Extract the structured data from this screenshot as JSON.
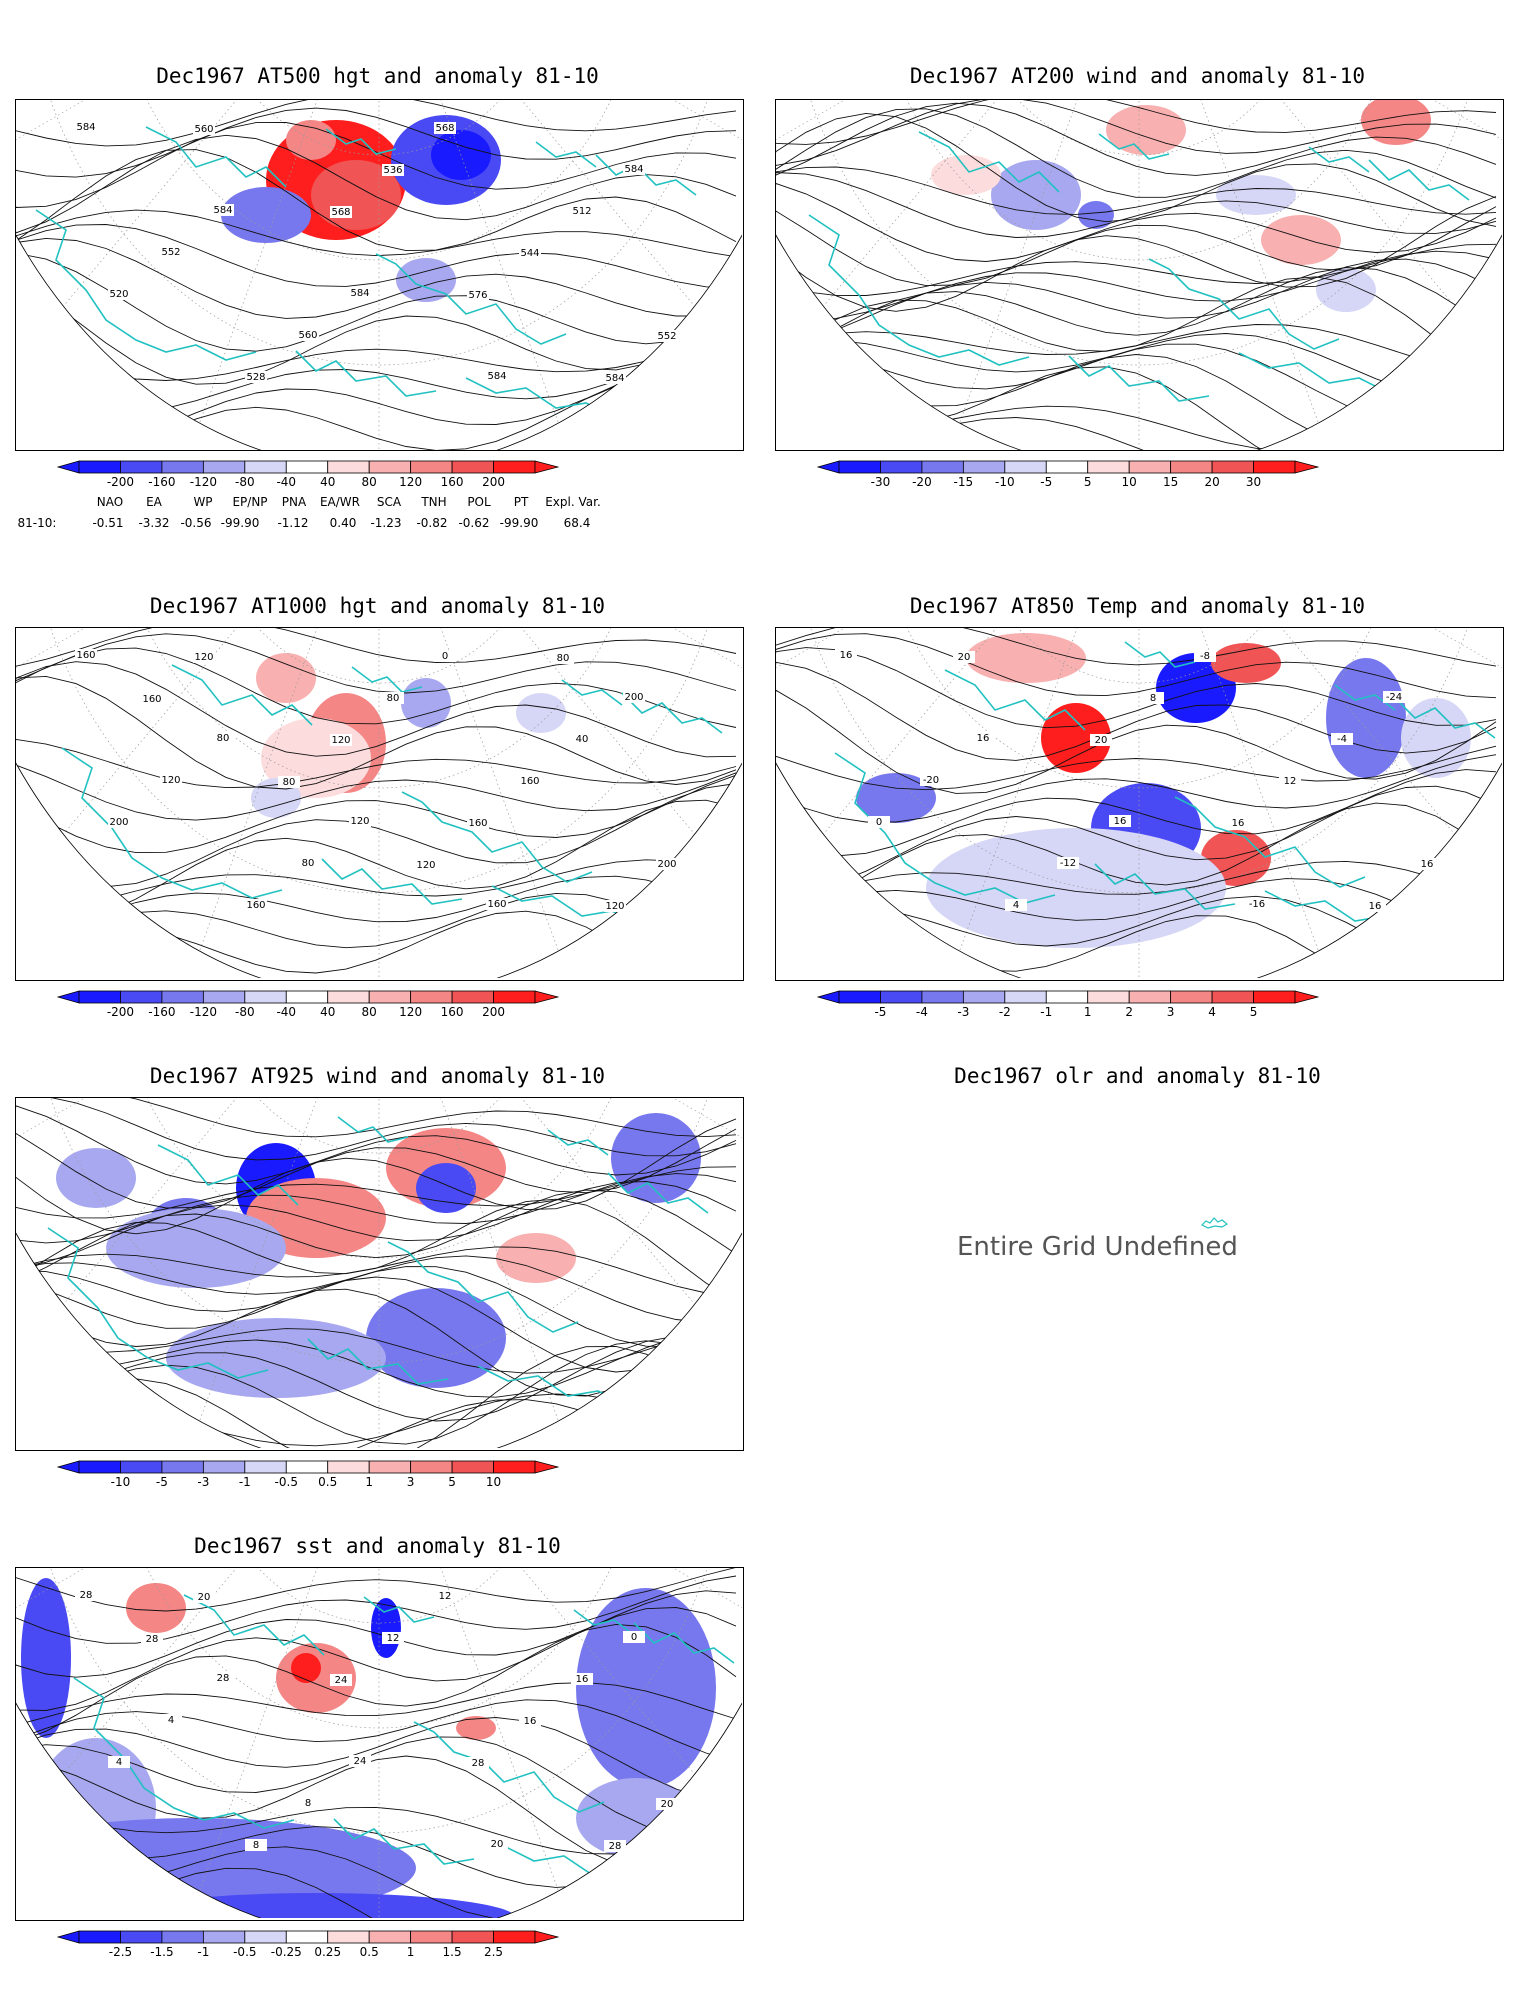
{
  "panels": [
    {
      "id": "p1",
      "title": "Dec1967 AT500 hgt and anomaly 81-10",
      "colorbar": [
        "-200",
        "-160",
        "-120",
        "-80",
        "-40",
        "40",
        "80",
        "120",
        "160",
        "200"
      ],
      "contour_labels": [
        "584",
        "584",
        "584",
        "584",
        "584",
        "552",
        "560",
        "568",
        "512",
        "520",
        "528",
        "536",
        "544",
        "552",
        "560",
        "568",
        "576",
        "584"
      ]
    },
    {
      "id": "p2",
      "title": "Dec1967 AT200 wind and anomaly 81-10",
      "colorbar": [
        "-30",
        "-20",
        "-15",
        "-10",
        "-5",
        "5",
        "10",
        "15",
        "20",
        "30"
      ],
      "contour_labels": []
    },
    {
      "id": "p3",
      "title": "Dec1967 AT1000 hgt and anomaly 81-10",
      "colorbar": [
        "-200",
        "-160",
        "-120",
        "-80",
        "-40",
        "40",
        "80",
        "120",
        "160",
        "200"
      ],
      "contour_labels": [
        "160",
        "80",
        "120",
        "160",
        "200",
        "120",
        "80",
        "0",
        "40",
        "200",
        "160",
        "80",
        "160",
        "200",
        "120",
        "120",
        "160",
        "120",
        "160",
        "80",
        "120",
        "80"
      ]
    },
    {
      "id": "p4",
      "title": "Dec1967 AT850 Temp and anomaly 81-10",
      "colorbar": [
        "-5",
        "-4",
        "-3",
        "-2",
        "-1",
        "1",
        "2",
        "3",
        "4",
        "5"
      ],
      "contour_labels": [
        "16",
        "16",
        "16",
        "-16",
        "-24",
        "-20",
        "-12",
        "-8",
        "-4",
        "0",
        "4",
        "8",
        "12",
        "16",
        "20",
        "20",
        "16",
        "16"
      ]
    },
    {
      "id": "p5",
      "title": "Dec1967 AT925 wind and anomaly 81-10",
      "colorbar": [
        "-10",
        "-5",
        "-3",
        "-1",
        "-0.5",
        "0.5",
        "1",
        "3",
        "5",
        "10"
      ],
      "contour_labels": []
    },
    {
      "id": "p6",
      "title": "Dec1967 olr and anomaly 81-10",
      "undefined_text": "Entire Grid Undefined"
    },
    {
      "id": "p7",
      "title": "Dec1967 sst and anomaly 81-10",
      "colorbar": [
        "-2.5",
        "-1.5",
        "-1",
        "-0.5",
        "-0.25",
        "0.25",
        "0.5",
        "1",
        "1.5",
        "2.5"
      ],
      "contour_labels": [
        "28",
        "28",
        "24",
        "20",
        "0",
        "4",
        "8",
        "12",
        "16",
        "4",
        "8",
        "12",
        "16",
        "20",
        "20",
        "24",
        "28",
        "28",
        "28"
      ]
    }
  ],
  "indices": {
    "header": [
      "NAO",
      "EA",
      "WP",
      "EP/NP",
      "PNA",
      "EA/WR",
      "SCA",
      "TNH",
      "POL",
      "PT",
      "Expl. Var."
    ],
    "row_label": "81-10:",
    "values": [
      "-0.51",
      "-3.32",
      "-0.56",
      "-99.90",
      "-1.12",
      "0.40",
      "-1.23",
      "-0.82",
      "-0.62",
      "-99.90",
      "68.4"
    ]
  },
  "colors": {
    "coast": "#22c1c1",
    "blue": [
      "#1a1aff",
      "#4a4af5",
      "#7878ee",
      "#a8a8f0",
      "#d6d6f6"
    ],
    "red": [
      "#fcdcdc",
      "#f8b0b0",
      "#f48686",
      "#f05454",
      "#ff1e1e"
    ],
    "contour": "#111111",
    "grid": "#9a9a9a"
  }
}
